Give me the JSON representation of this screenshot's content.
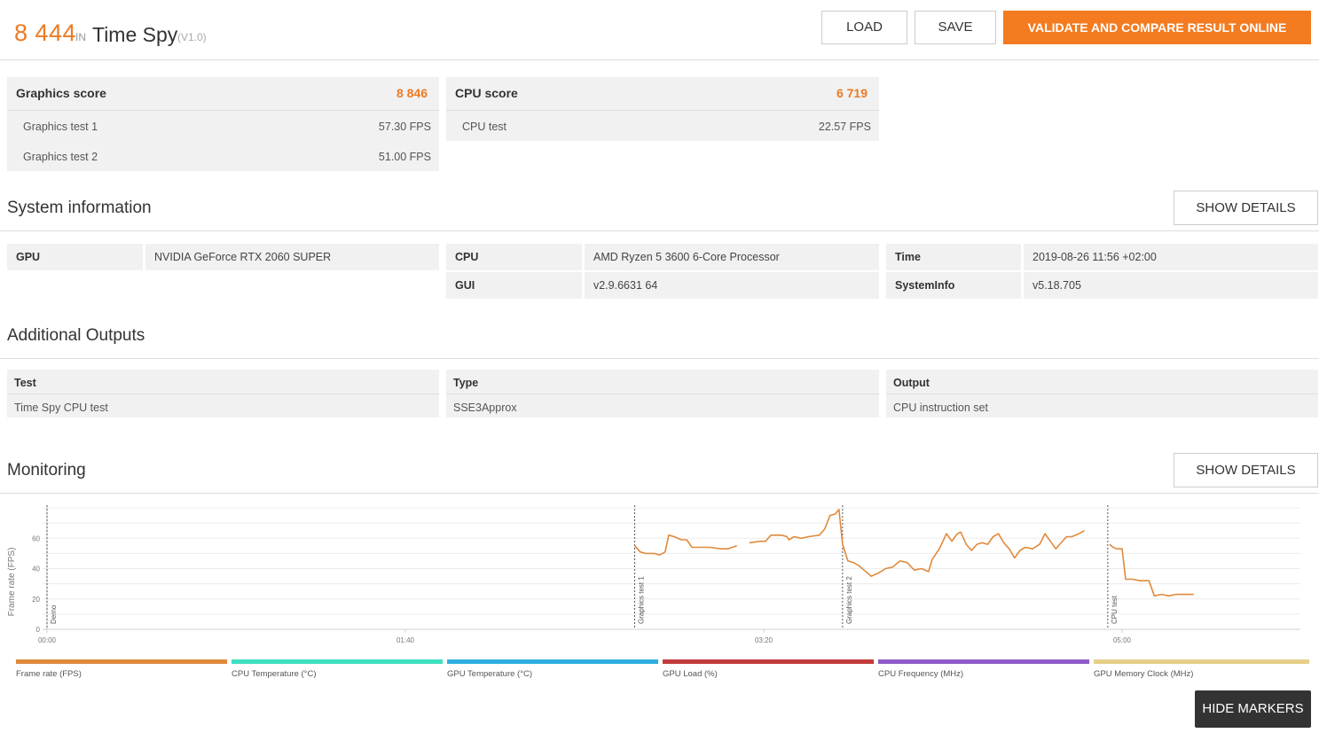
{
  "header": {
    "score": "8 444",
    "in_label": "IN",
    "benchmark": "Time Spy",
    "version": "(V1.0)",
    "load_label": "LOAD",
    "save_label": "SAVE",
    "validate_label": "VALIDATE AND COMPARE RESULT ONLINE"
  },
  "graphics": {
    "label": "Graphics score",
    "value": "8 846",
    "tests": [
      {
        "label": "Graphics test 1",
        "value": "57.30 FPS"
      },
      {
        "label": "Graphics test 2",
        "value": "51.00 FPS"
      }
    ]
  },
  "cpu": {
    "label": "CPU score",
    "value": "6 719",
    "tests": [
      {
        "label": "CPU test",
        "value": "22.57 FPS"
      }
    ]
  },
  "system": {
    "title": "System information",
    "details_label": "SHOW DETAILS",
    "gpu_key": "GPU",
    "gpu_value": "NVIDIA GeForce RTX 2060 SUPER",
    "cpu_key": "CPU",
    "cpu_value": "AMD Ryzen 5 3600 6-Core Processor",
    "gui_key": "GUI",
    "gui_value": "v2.9.6631 64",
    "time_key": "Time",
    "time_value": "2019-08-26 11:56 +02:00",
    "sysinfo_key": "SystemInfo",
    "sysinfo_value": "v5.18.705"
  },
  "additional": {
    "title": "Additional Outputs",
    "columns": [
      {
        "header": "Test",
        "value": "Time Spy CPU test"
      },
      {
        "header": "Type",
        "value": "SSE3Approx"
      },
      {
        "header": "Output",
        "value": "CPU instruction set"
      }
    ]
  },
  "monitoring": {
    "title": "Monitoring",
    "details_label": "SHOW DETAILS",
    "hide_markers_label": "HIDE MARKERS",
    "legend": [
      {
        "label": "Frame rate (FPS)",
        "color": "#e08a3c"
      },
      {
        "label": "CPU Temperature (°C)",
        "color": "#3fe0c0"
      },
      {
        "label": "GPU Temperature (°C)",
        "color": "#2eaee0"
      },
      {
        "label": "GPU Load (%)",
        "color": "#c23b3b"
      },
      {
        "label": "CPU Frequency (MHz)",
        "color": "#8e5cc8"
      },
      {
        "label": "GPU Memory Clock (MHz)",
        "color": "#e6cf88"
      }
    ]
  },
  "chart_data": {
    "type": "line",
    "ylabel": "Frame rate (FPS)",
    "ylim": [
      0,
      80
    ],
    "yticks": [
      "0",
      "20",
      "40",
      "60"
    ],
    "xlim": [
      0,
      420
    ],
    "xticks": [
      {
        "t": 0,
        "label": "00:00"
      },
      {
        "t": 100,
        "label": "01:40"
      },
      {
        "t": 200,
        "label": "03:20"
      },
      {
        "t": 300,
        "label": "05:00"
      }
    ],
    "markers": [
      {
        "t": 0,
        "label": "Demo"
      },
      {
        "t": 164,
        "label": "Graphics test 1"
      },
      {
        "t": 222,
        "label": "Graphics test 2"
      },
      {
        "t": 296,
        "label": "CPU test"
      }
    ],
    "series": [
      {
        "name": "Frame rate (FPS)",
        "color": "#e08a3c",
        "points": [
          [
            164.0,
            55
          ],
          [
            165.5,
            51
          ],
          [
            167.0,
            50
          ],
          [
            169.5,
            50
          ],
          [
            171.0,
            49
          ],
          [
            172.5,
            51
          ],
          [
            173.5,
            62
          ],
          [
            175.0,
            61
          ],
          [
            177.0,
            59
          ],
          [
            178.5,
            59
          ],
          [
            180.0,
            54
          ],
          [
            182.5,
            54
          ],
          [
            185.0,
            54
          ],
          [
            188.0,
            53
          ],
          [
            190.0,
            53
          ],
          [
            192.5,
            55
          ],
          [
            196.0,
            57
          ],
          [
            199.0,
            58
          ],
          [
            200.5,
            58
          ],
          [
            202.0,
            62
          ],
          [
            205.0,
            62
          ],
          [
            206.5,
            61
          ],
          [
            207.0,
            59
          ],
          [
            208.5,
            61
          ],
          [
            210.5,
            60
          ],
          [
            212.5,
            61
          ],
          [
            215.5,
            62
          ],
          [
            217.0,
            66
          ],
          [
            218.5,
            75
          ],
          [
            220.0,
            76
          ],
          [
            221.0,
            79
          ],
          [
            222.0,
            56
          ],
          [
            223.5,
            45
          ],
          [
            225.0,
            44
          ],
          [
            226.5,
            42
          ],
          [
            228.0,
            39
          ],
          [
            230.0,
            35
          ],
          [
            231.0,
            36
          ],
          [
            232.0,
            37
          ],
          [
            234.0,
            40
          ],
          [
            236.0,
            41
          ],
          [
            238.0,
            45
          ],
          [
            240.0,
            44
          ],
          [
            242.0,
            39
          ],
          [
            244.0,
            40
          ],
          [
            246.0,
            38
          ],
          [
            247.0,
            46
          ],
          [
            249.0,
            53
          ],
          [
            251.0,
            63
          ],
          [
            252.5,
            58
          ],
          [
            254.0,
            63
          ],
          [
            255.0,
            64
          ],
          [
            256.5,
            56
          ],
          [
            258.0,
            52
          ],
          [
            259.5,
            56
          ],
          [
            261.0,
            57
          ],
          [
            262.5,
            56
          ],
          [
            264.0,
            61
          ],
          [
            265.5,
            63
          ],
          [
            267.0,
            57
          ],
          [
            268.5,
            53
          ],
          [
            270.0,
            47
          ],
          [
            271.5,
            52
          ],
          [
            273.0,
            54
          ],
          [
            275.0,
            53
          ],
          [
            277.0,
            56
          ],
          [
            278.5,
            63
          ],
          [
            280.0,
            58
          ],
          [
            281.5,
            53
          ],
          [
            283.0,
            57
          ],
          [
            284.5,
            61
          ],
          [
            286.0,
            61
          ],
          [
            288.0,
            63
          ],
          [
            289.5,
            65
          ],
          [
            296.5,
            56
          ],
          [
            297.5,
            54
          ],
          [
            298.5,
            53
          ],
          [
            300.0,
            53
          ],
          [
            301.0,
            33
          ],
          [
            303.0,
            33
          ],
          [
            305.0,
            32
          ],
          [
            307.5,
            32
          ],
          [
            309.0,
            22
          ],
          [
            311.0,
            23
          ],
          [
            313.0,
            22
          ],
          [
            315.0,
            23
          ],
          [
            317.0,
            23
          ],
          [
            320.0,
            23
          ]
        ]
      }
    ]
  }
}
